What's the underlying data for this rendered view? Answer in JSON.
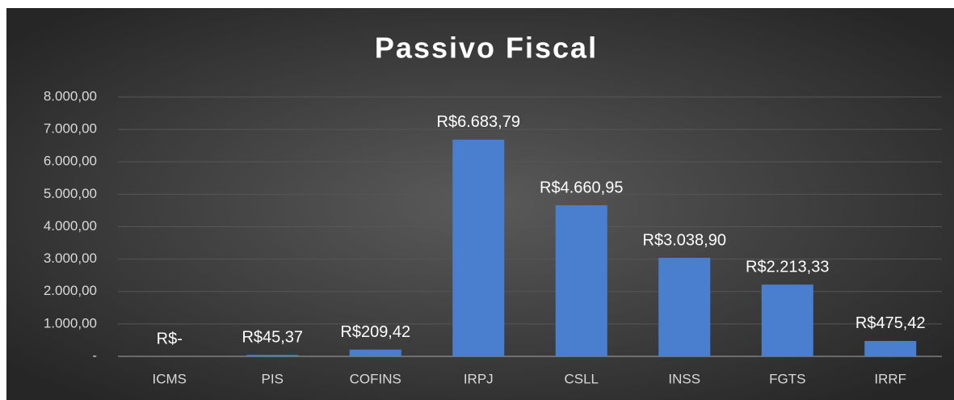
{
  "chart_data": {
    "type": "bar",
    "title": "Passivo Fiscal",
    "categories": [
      "ICMS",
      "PIS",
      "COFINS",
      "IRPJ",
      "CSLL",
      "INSS",
      "FGTS",
      "IRRF"
    ],
    "values": [
      0,
      45.37,
      209.42,
      6683.79,
      4660.95,
      3038.9,
      2213.33,
      475.42
    ],
    "value_labels": [
      "R$-",
      "R$45,37",
      "R$209,42",
      "R$6.683,79",
      "R$4.660,95",
      "R$3.038,90",
      "R$2.213,33",
      "R$475,42"
    ],
    "color": "#4a7fd0",
    "ylim": [
      0,
      8000
    ],
    "yticks": [
      {
        "value": 0,
        "label": "-"
      },
      {
        "value": 1000,
        "label": "1.000,00"
      },
      {
        "value": 2000,
        "label": "2.000,00"
      },
      {
        "value": 3000,
        "label": "3.000,00"
      },
      {
        "value": 4000,
        "label": "4.000,00"
      },
      {
        "value": 5000,
        "label": "5.000,00"
      },
      {
        "value": 6000,
        "label": "6.000,00"
      },
      {
        "value": 7000,
        "label": "7.000,00"
      },
      {
        "value": 8000,
        "label": "8.000,00"
      }
    ],
    "grid": true
  }
}
